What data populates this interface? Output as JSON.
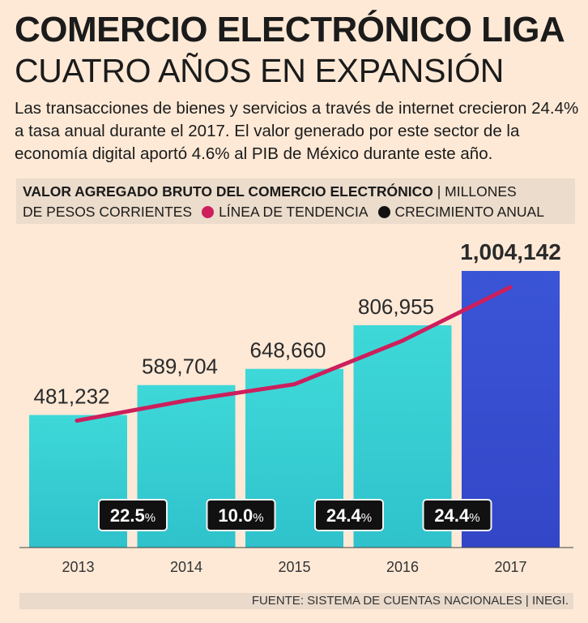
{
  "header": {
    "title": "COMERCIO ELECTRÓNICO LIGA",
    "subtitle": "CUATRO AÑOS EN EXPANSIÓN",
    "intro": "Las transacciones de bienes y servicios a través de internet crecieron 24.4% a tasa anual durante el 2017. El valor generado por este sector de la economía digital aportó 4.6% al PIB de México durante este año."
  },
  "legend": {
    "metric_bold": "VALOR AGREGADO BRUTO DEL COMERCIO ELECTRÓNICO",
    "separator": "|",
    "unit": "MILLONES",
    "unit_cont": "DE PESOS CORRIENTES",
    "trend_label": "LÍNEA DE TENDENCIA",
    "growth_label": "CRECIMIENTO ANUAL"
  },
  "chart_data": {
    "type": "bar",
    "title": "VALOR AGREGADO BRUTO DEL COMERCIO ELECTRÓNICO",
    "ylabel": "Millones de pesos corrientes",
    "categories": [
      "2013",
      "2014",
      "2015",
      "2016",
      "2017"
    ],
    "values": [
      481232,
      589704,
      648660,
      806955,
      1004142
    ],
    "value_labels": [
      "481,232",
      "589,704",
      "648,660",
      "806,955",
      "1,004,142"
    ],
    "growth": [
      {
        "between": [
          "2013",
          "2014"
        ],
        "value": "22.5",
        "unit": "%"
      },
      {
        "between": [
          "2014",
          "2015"
        ],
        "value": "10.0",
        "unit": "%"
      },
      {
        "between": [
          "2015",
          "2016"
        ],
        "value": "24.4",
        "unit": "%"
      },
      {
        "between": [
          "2016",
          "2017"
        ],
        "value": "24.4",
        "unit": "%"
      }
    ],
    "trend_line": true,
    "ylim": [
      0,
      1004142
    ],
    "colors": {
      "bar": "#39d2d3",
      "highlight_bar": "#3a52d0",
      "trend": "#cc1f5c",
      "badge": "#111111"
    }
  },
  "source": "FUENTE: SISTEMA DE CUENTAS NACIONALES | INEGI."
}
